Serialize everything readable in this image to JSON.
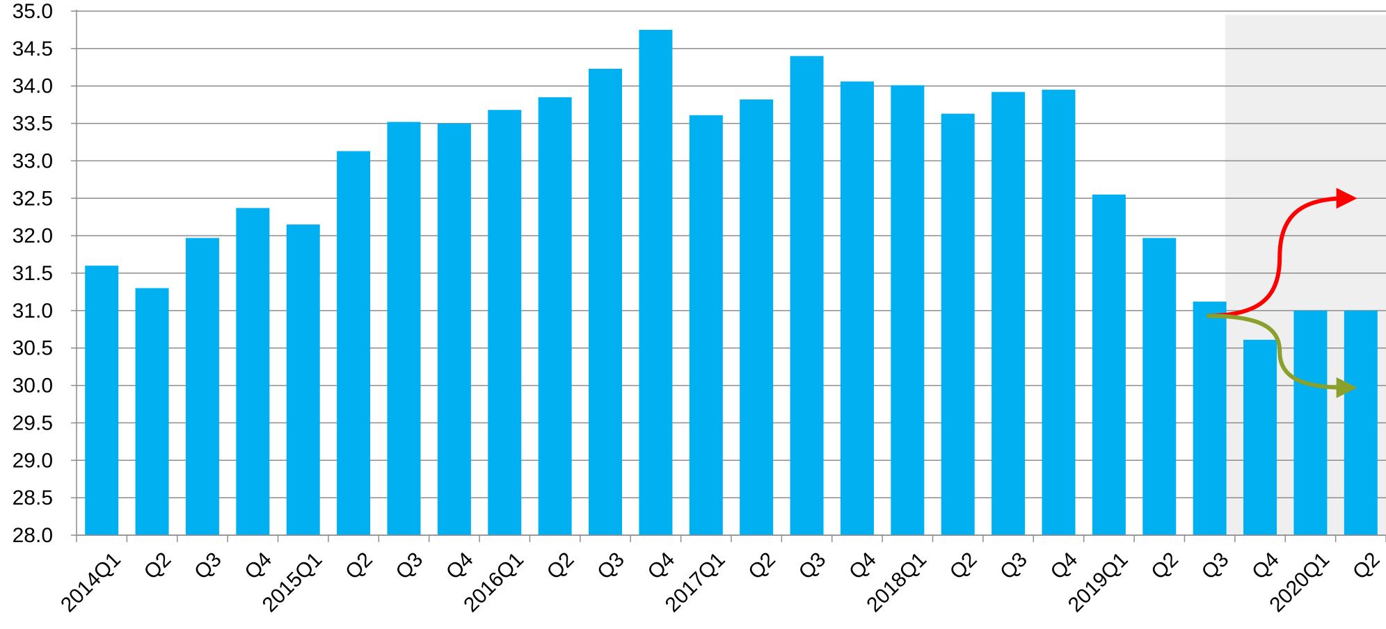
{
  "chart_data": {
    "type": "bar",
    "title": "",
    "xlabel": "",
    "ylabel": "",
    "ylim": [
      28.0,
      35.0
    ],
    "yticks": [
      "28.0",
      "28.5",
      "29.0",
      "29.5",
      "30.0",
      "30.5",
      "31.0",
      "31.5",
      "32.0",
      "32.5",
      "33.0",
      "33.5",
      "34.0",
      "34.5",
      "35.0"
    ],
    "grid": true,
    "legend": "none",
    "categories": [
      "2014Q1",
      "Q2",
      "Q3",
      "Q4",
      "2015Q1",
      "Q2",
      "Q3",
      "Q4",
      "2016Q1",
      "Q2",
      "Q3",
      "Q4",
      "2017Q1",
      "Q2",
      "Q3",
      "Q4",
      "2018Q1",
      "Q2",
      "Q3",
      "Q4",
      "2019Q1",
      "Q2",
      "Q3",
      "Q4",
      "2020Q1",
      "Q2"
    ],
    "values": [
      31.6,
      31.3,
      31.97,
      32.37,
      32.15,
      33.13,
      33.52,
      33.5,
      33.68,
      33.85,
      34.23,
      34.75,
      33.61,
      33.82,
      34.4,
      34.06,
      34.01,
      33.63,
      33.92,
      33.95,
      32.55,
      31.97,
      31.12,
      30.61,
      31.0,
      31.0
    ],
    "forecast_region": {
      "from_category": "Q4",
      "from_index": 23,
      "to_index": 25,
      "shade_color": "#efefef"
    },
    "scenario_arrows": [
      {
        "name": "upside",
        "color": "#ff0000",
        "start": 30.93,
        "end": 32.5
      },
      {
        "name": "downside",
        "color": "#8aa02c",
        "start": 30.93,
        "end": 29.97
      }
    ],
    "colors": {
      "bar": "#00b0f0",
      "grid": "#8c8c8c",
      "axis": "#8c8c8c"
    }
  }
}
